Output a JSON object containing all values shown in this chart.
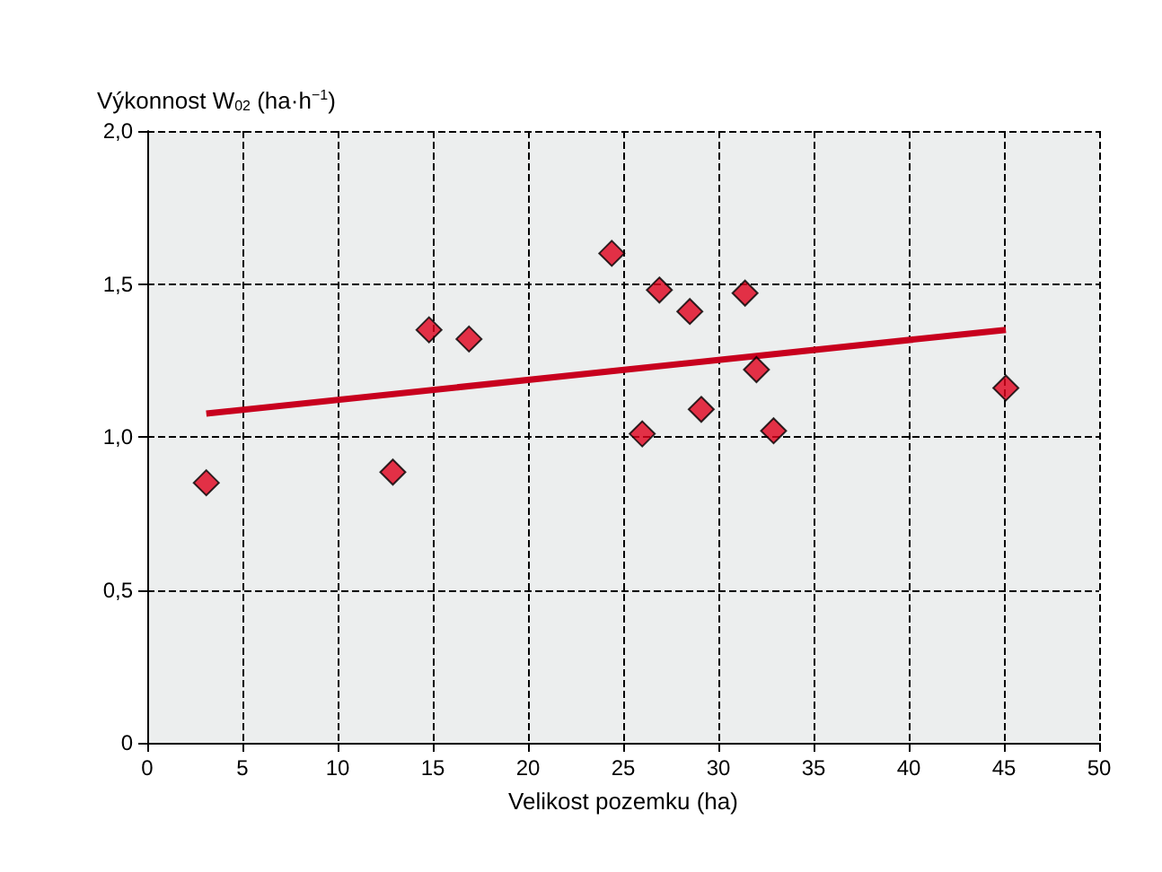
{
  "chart_data": {
    "type": "scatter",
    "xlabel": "Velikost pozemku (ha)",
    "ylabel": "Výkonnost W$_{02}$ (ha·h$^{−1}$)",
    "xlim": [
      0,
      50
    ],
    "xticks": [
      0,
      5,
      10,
      15,
      20,
      25,
      30,
      35,
      40,
      45,
      50
    ],
    "ylim": [
      0,
      2
    ],
    "yticks": [
      {
        "value": 0,
        "label": "0"
      },
      {
        "value": 0.5,
        "label": "0,5"
      },
      {
        "value": 1,
        "label": "1,0"
      },
      {
        "value": 1.5,
        "label": "1,5"
      },
      {
        "value": 2,
        "label": "2,0"
      }
    ],
    "grid": true,
    "series": [
      {
        "marker": "diamond",
        "color": "#e0001b",
        "x": [
          3.1,
          12.9,
          14.8,
          16.9,
          24.4,
          26.0,
          26.9,
          28.5,
          29.1,
          31.4,
          32.0,
          32.9,
          45.1
        ],
        "values": [
          0.85,
          0.885,
          1.35,
          1.32,
          1.6,
          1.01,
          1.48,
          1.41,
          1.09,
          1.47,
          1.22,
          1.02,
          1.16
        ]
      },
      {
        "type": "line",
        "marker": "none",
        "color": "#c8001e",
        "x": [
          3.1,
          45.1
        ],
        "values": [
          1.076,
          1.35
        ]
      }
    ]
  }
}
